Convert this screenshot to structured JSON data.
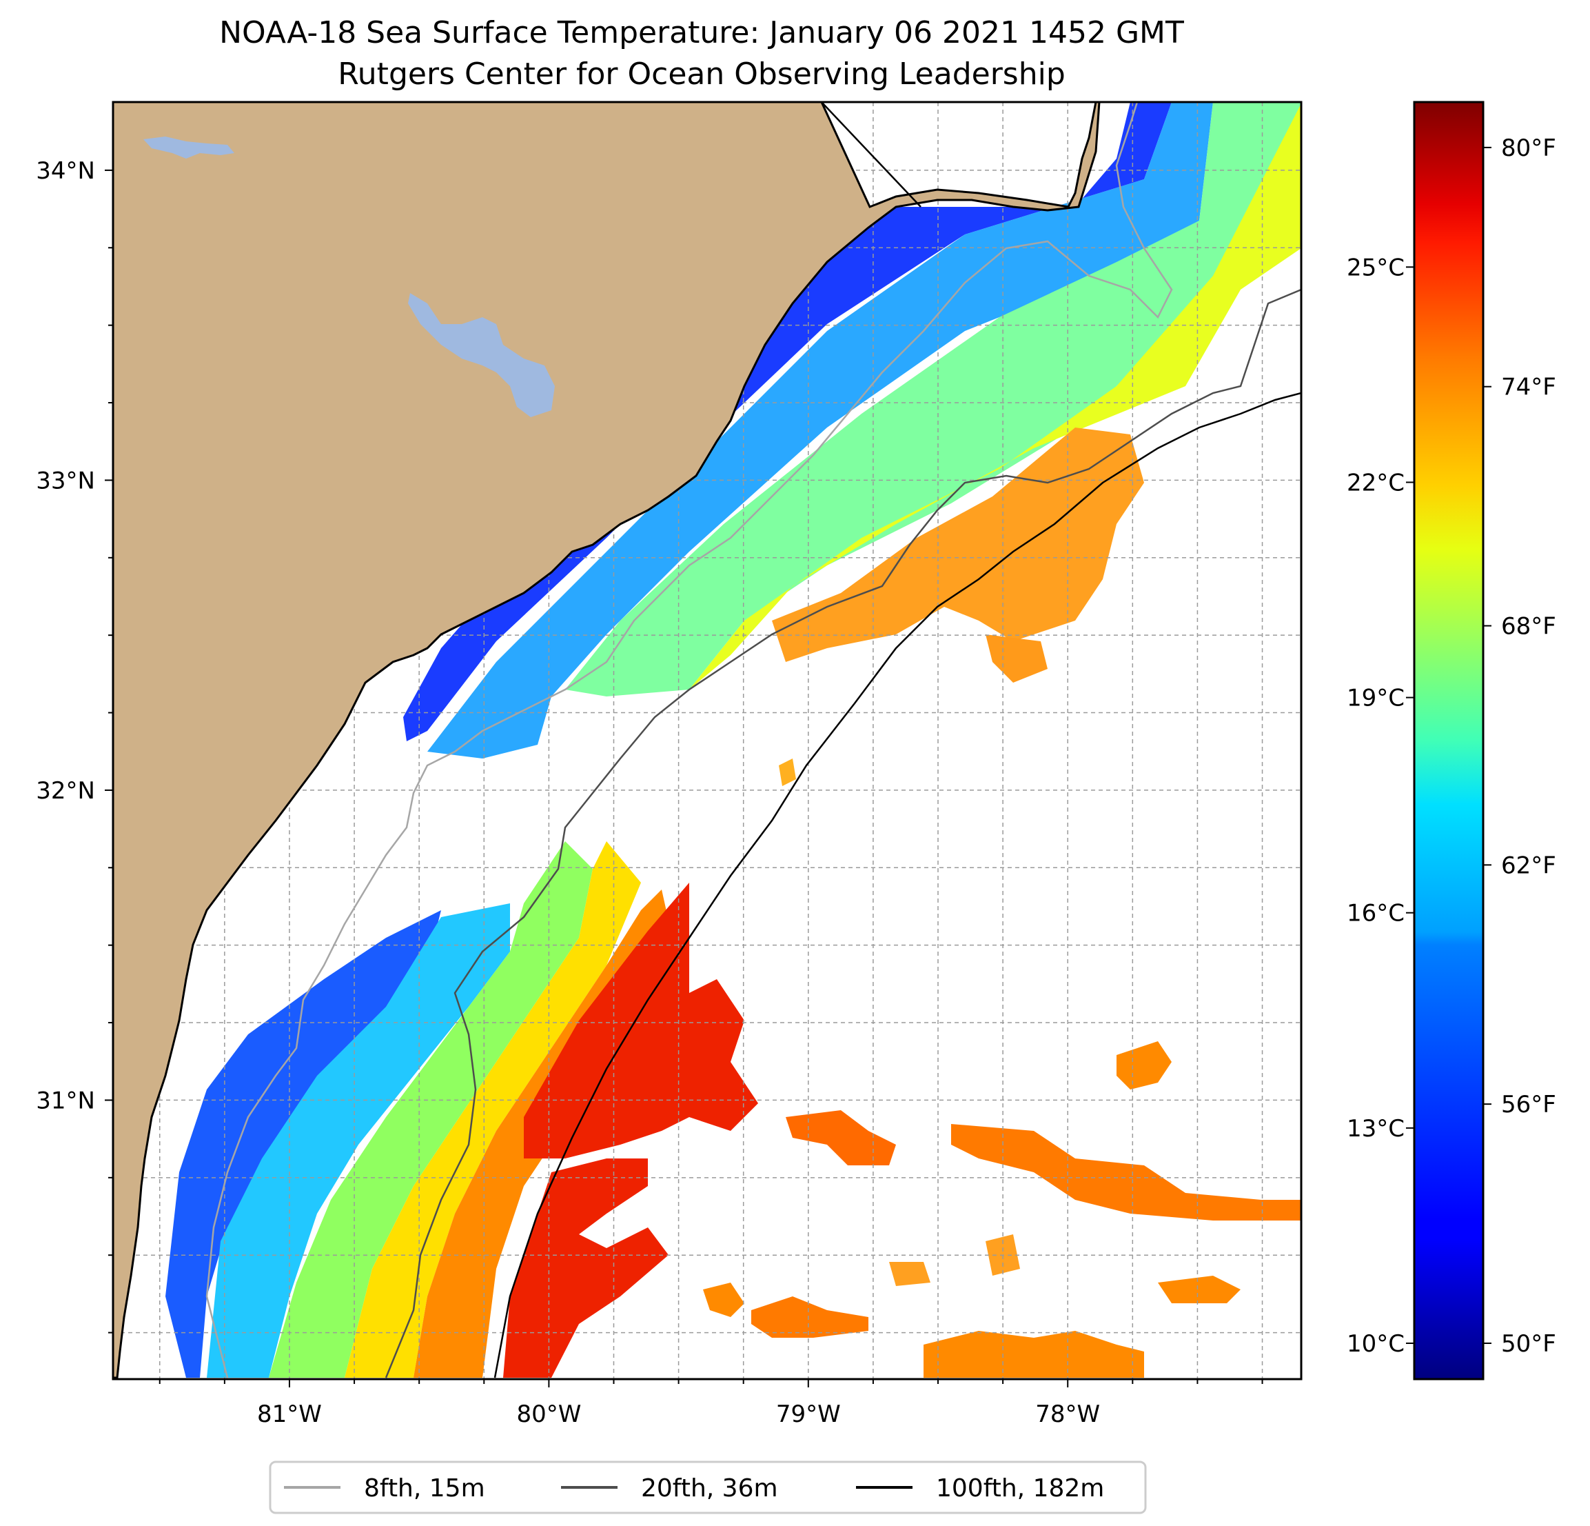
{
  "title": {
    "line1": "NOAA-18 Sea Surface Temperature: January 06 2021 1452 GMT",
    "line2": "Rutgers Center for Ocean Observing Leadership"
  },
  "map": {
    "lon_range": [
      -81.68,
      -77.1
    ],
    "lat_range": [
      30.1,
      34.22
    ],
    "lon_ticks": [
      {
        "value": -81,
        "label": "81°W"
      },
      {
        "value": -80,
        "label": "80°W"
      },
      {
        "value": -79,
        "label": "79°W"
      },
      {
        "value": -78,
        "label": "78°W"
      }
    ],
    "lat_ticks": [
      {
        "value": 31,
        "label": "31°N"
      },
      {
        "value": 32,
        "label": "32°N"
      },
      {
        "value": 33,
        "label": "33°N"
      },
      {
        "value": 34,
        "label": "34°N"
      }
    ],
    "grid_spacing_deg": 0.25,
    "land_color": "#cfb188",
    "water_body_color": "#9fb9e0"
  },
  "colorbar": {
    "celsius_range": [
      9.5,
      27.3
    ],
    "celsius_ticks": [
      {
        "value": 10,
        "label": "10°C"
      },
      {
        "value": 13,
        "label": "13°C"
      },
      {
        "value": 16,
        "label": "16°C"
      },
      {
        "value": 19,
        "label": "19°C"
      },
      {
        "value": 22,
        "label": "22°C"
      },
      {
        "value": 25,
        "label": "25°C"
      }
    ],
    "fahrenheit_ticks": [
      {
        "value": 50,
        "label": "50°F"
      },
      {
        "value": 56,
        "label": "56°F"
      },
      {
        "value": 62,
        "label": "62°F"
      },
      {
        "value": 68,
        "label": "68°F"
      },
      {
        "value": 74,
        "label": "74°F"
      },
      {
        "value": 80,
        "label": "80°F"
      }
    ],
    "colormap": "jet"
  },
  "legend": {
    "items": [
      {
        "label": "8fth, 15m",
        "color": "#a6a6a6"
      },
      {
        "label": "20fth, 36m",
        "color": "#4d4d4d"
      },
      {
        "label": "100fth, 182m",
        "color": "#000000"
      }
    ]
  }
}
